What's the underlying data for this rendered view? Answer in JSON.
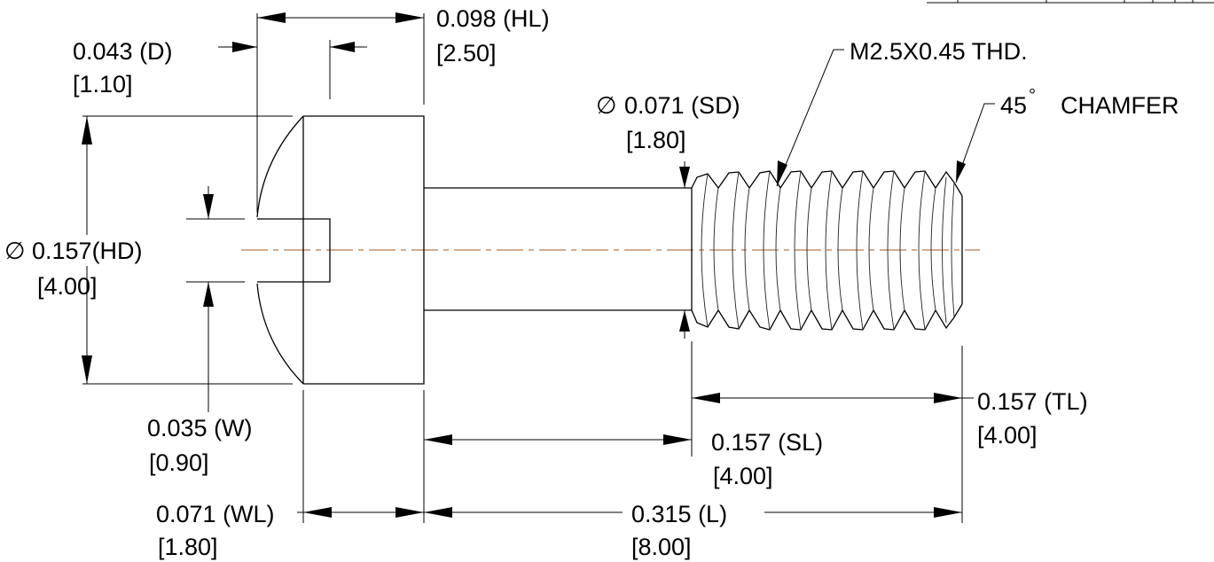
{
  "dimensions": {
    "hl": {
      "value": "0.098 (HL)",
      "metric": "[2.50]"
    },
    "d": {
      "value": "0.043 (D)",
      "metric": "[1.10]"
    },
    "thread": {
      "label": "M2.5X0.45 THD."
    },
    "sd": {
      "symbol": "∅",
      "value": "0.071 (SD)",
      "metric": "[1.80]"
    },
    "chamfer": {
      "angle": "45",
      "degree": "°",
      "label": "CHAMFER"
    },
    "hd": {
      "symbol": "∅",
      "value": "0.157(HD)",
      "metric": "[4.00]"
    },
    "tl": {
      "value": "0.157 (TL)",
      "metric": "[4.00]"
    },
    "w": {
      "value": "0.035 (W)",
      "metric": "[0.90]"
    },
    "sl": {
      "value": "0.157 (SL)",
      "metric": "[4.00]"
    },
    "wl": {
      "value": "0.071 (WL)",
      "metric": "[1.80]"
    },
    "l": {
      "value": "0.315 (L)",
      "metric": "[8.00]"
    }
  },
  "colors": {
    "centerline": "#b87a4b",
    "lines": "#000000"
  }
}
